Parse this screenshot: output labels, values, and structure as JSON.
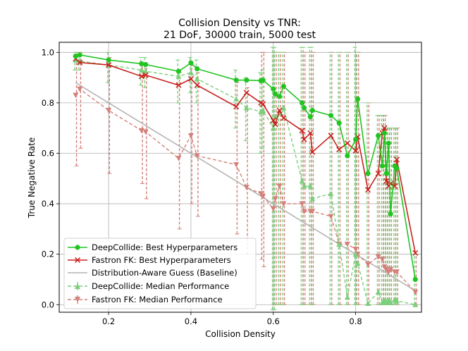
{
  "chart_data": {
    "type": "line",
    "title_line1": "Collision Density vs TNR:",
    "title_line2": "21 DoF, 30000 train, 5000 test",
    "xlabel": "Collision Density",
    "ylabel": "True Negative Rate",
    "xlim": [
      0.08,
      0.96
    ],
    "ylim": [
      -0.03,
      1.04
    ],
    "xticks": [
      0.2,
      0.4,
      0.6,
      0.8
    ],
    "xtick_labels": [
      "0.2",
      "0.4",
      "0.6",
      "0.8"
    ],
    "yticks": [
      0.0,
      0.2,
      0.4,
      0.6,
      0.8,
      1.0
    ],
    "ytick_labels": [
      "0.0",
      "0.2",
      "0.4",
      "0.6",
      "0.8",
      "1.0"
    ],
    "grid": true,
    "legend_position": "lower-left",
    "colors": {
      "green": "#22c422",
      "red": "#c8201e",
      "gray": "#b4b4b4",
      "light_green": "#7ccf7c",
      "light_red": "#d4807a"
    },
    "series": [
      {
        "name": "DeepCollide: Best Hyperparameters",
        "style": "solid-circle",
        "color": "#22c422",
        "x": [
          0.12,
          0.13,
          0.2,
          0.28,
          0.29,
          0.37,
          0.4,
          0.415,
          0.51,
          0.535,
          0.57,
          0.575,
          0.6,
          0.605,
          0.615,
          0.625,
          0.67,
          0.675,
          0.69,
          0.695,
          0.74,
          0.76,
          0.78,
          0.8,
          0.805,
          0.83,
          0.855,
          0.865,
          0.87,
          0.875,
          0.88,
          0.885,
          0.895,
          0.9,
          0.945
        ],
        "y": [
          0.985,
          0.99,
          0.97,
          0.955,
          0.952,
          0.925,
          0.958,
          0.935,
          0.89,
          0.89,
          0.888,
          0.89,
          0.855,
          0.835,
          0.825,
          0.865,
          0.8,
          0.78,
          0.745,
          0.77,
          0.75,
          0.72,
          0.59,
          0.655,
          0.815,
          0.52,
          0.67,
          0.55,
          0.68,
          0.52,
          0.64,
          0.36,
          0.55,
          0.54,
          0.1
        ]
      },
      {
        "name": "Fastron FK: Best Hyperparameters",
        "style": "solid-x",
        "color": "#c8201e",
        "x": [
          0.12,
          0.13,
          0.2,
          0.28,
          0.29,
          0.37,
          0.4,
          0.415,
          0.51,
          0.535,
          0.57,
          0.575,
          0.6,
          0.605,
          0.615,
          0.625,
          0.67,
          0.675,
          0.69,
          0.695,
          0.74,
          0.76,
          0.78,
          0.8,
          0.805,
          0.83,
          0.855,
          0.865,
          0.87,
          0.875,
          0.88,
          0.885,
          0.895,
          0.9,
          0.945
        ],
        "y": [
          0.975,
          0.96,
          0.95,
          0.905,
          0.91,
          0.87,
          0.895,
          0.87,
          0.785,
          0.84,
          0.8,
          0.795,
          0.73,
          0.715,
          0.77,
          0.74,
          0.69,
          0.655,
          0.68,
          0.605,
          0.67,
          0.615,
          0.64,
          0.61,
          0.665,
          0.455,
          0.52,
          0.68,
          0.7,
          0.49,
          0.47,
          0.48,
          0.47,
          0.575,
          0.205
        ]
      },
      {
        "name": "Distribution-Aware Guess (Baseline)",
        "style": "solid-line",
        "color": "#b4b4b4",
        "x": [
          0.12,
          0.95
        ],
        "y": [
          0.88,
          0.05
        ]
      },
      {
        "name": "DeepCollide: Median Performance",
        "style": "dashed-triangle-up",
        "color": "#7ccf7c",
        "x": [
          0.12,
          0.13,
          0.2,
          0.28,
          0.29,
          0.37,
          0.4,
          0.415,
          0.51,
          0.535,
          0.57,
          0.575,
          0.6,
          0.605,
          0.615,
          0.625,
          0.67,
          0.675,
          0.69,
          0.695,
          0.74,
          0.76,
          0.78,
          0.8,
          0.805,
          0.83,
          0.855,
          0.865,
          0.87,
          0.875,
          0.88,
          0.885,
          0.895,
          0.9,
          0.945
        ],
        "y": [
          0.97,
          0.965,
          0.95,
          0.93,
          0.925,
          0.905,
          0.92,
          0.895,
          0.815,
          0.78,
          0.765,
          0.77,
          0.7,
          0.745,
          0.76,
          0.78,
          0.49,
          0.47,
          0.47,
          0.42,
          0.44,
          0.24,
          0.03,
          0.2,
          0.165,
          0.005,
          0.05,
          0.01,
          0.015,
          0.01,
          0.015,
          0.01,
          0.02,
          0.015,
          0.0
        ]
      },
      {
        "name": "Fastron FK: Median Performance",
        "style": "dashed-triangle-down",
        "color": "#d4807a",
        "x": [
          0.12,
          0.13,
          0.2,
          0.28,
          0.29,
          0.37,
          0.4,
          0.415,
          0.51,
          0.535,
          0.57,
          0.575,
          0.6,
          0.605,
          0.615,
          0.625,
          0.67,
          0.675,
          0.69,
          0.695,
          0.74,
          0.76,
          0.78,
          0.8,
          0.805,
          0.83,
          0.855,
          0.865,
          0.87,
          0.875,
          0.88,
          0.885,
          0.895,
          0.9,
          0.945
        ],
        "y": [
          0.83,
          0.855,
          0.77,
          0.69,
          0.685,
          0.58,
          0.67,
          0.59,
          0.555,
          0.465,
          0.44,
          0.43,
          0.38,
          0.42,
          0.47,
          0.4,
          0.4,
          0.37,
          0.37,
          0.37,
          0.35,
          0.24,
          0.24,
          0.22,
          0.2,
          0.16,
          0.19,
          0.18,
          0.15,
          0.14,
          0.13,
          0.14,
          0.13,
          0.13,
          0.05
        ]
      }
    ],
    "error_bars": {
      "deepcollide_low": [
        0.93,
        0.93,
        0.88,
        0.87,
        0.86,
        0.8,
        0.84,
        0.8,
        0.7,
        0.65,
        0.6,
        0.62,
        -0.02,
        -0.02,
        0.0,
        0.0,
        0.0,
        0.0,
        0.0,
        0.0,
        0.0,
        0.0,
        0.0,
        0.0,
        0.0,
        0.0,
        0.0,
        0.0,
        0.0,
        0.0,
        0.0,
        0.0,
        0.0,
        0.0,
        0.0
      ],
      "deepcollide_high": [
        1.0,
        1.0,
        1.0,
        0.98,
        0.98,
        0.97,
        0.98,
        0.97,
        0.93,
        0.9,
        0.92,
        0.93,
        1.02,
        1.02,
        1.0,
        1.0,
        1.02,
        1.02,
        1.02,
        1.02,
        1.0,
        1.0,
        1.0,
        1.02,
        1.0,
        0.8,
        0.75,
        0.75,
        0.75,
        0.7,
        0.7,
        0.7,
        0.7,
        0.7,
        0.2
      ],
      "fastron_low": [
        0.55,
        0.62,
        0.52,
        0.48,
        0.42,
        0.3,
        0.4,
        0.35,
        0.28,
        0.2,
        0.18,
        0.15,
        0.0,
        0.0,
        0.0,
        0.0,
        0.0,
        0.0,
        0.0,
        0.0,
        0.0,
        0.0,
        0.0,
        0.0,
        0.0,
        0.0,
        0.0,
        0.0,
        0.0,
        0.0,
        0.0,
        0.0,
        0.0,
        0.0,
        0.0
      ],
      "fastron_high": [
        1.0,
        1.0,
        0.98,
        0.95,
        0.95,
        0.92,
        0.95,
        0.92,
        0.88,
        0.86,
        1.0,
        1.0,
        1.0,
        1.0,
        1.0,
        1.0,
        1.0,
        1.0,
        1.0,
        1.0,
        1.0,
        1.0,
        1.0,
        1.0,
        1.0,
        0.8,
        0.75,
        0.75,
        0.75,
        0.7,
        0.7,
        0.7,
        0.7,
        0.7,
        0.2
      ]
    }
  }
}
